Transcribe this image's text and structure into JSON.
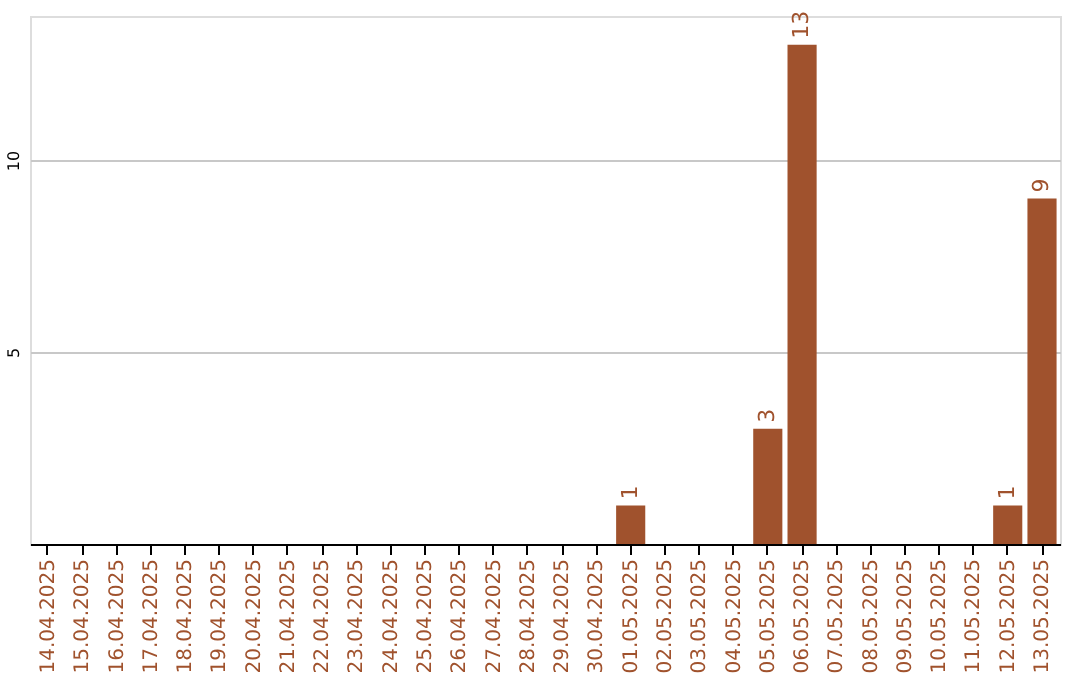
{
  "chart_data": {
    "type": "bar",
    "categories": [
      "14.04.2025",
      "15.04.2025",
      "16.04.2025",
      "17.04.2025",
      "18.04.2025",
      "19.04.2025",
      "20.04.2025",
      "21.04.2025",
      "22.04.2025",
      "23.04.2025",
      "24.04.2025",
      "25.04.2025",
      "26.04.2025",
      "27.04.2025",
      "28.04.2025",
      "29.04.2025",
      "30.04.2025",
      "01.05.2025",
      "02.05.2025",
      "03.05.2025",
      "04.05.2025",
      "05.05.2025",
      "06.05.2025",
      "07.05.2025",
      "08.05.2025",
      "09.05.2025",
      "10.05.2025",
      "11.05.2025",
      "12.05.2025",
      "13.05.2025"
    ],
    "values": [
      0,
      0,
      0,
      0,
      0,
      0,
      0,
      0,
      0,
      0,
      0,
      0,
      0,
      0,
      0,
      0,
      0,
      1,
      0,
      0,
      0,
      3,
      13,
      0,
      0,
      0,
      0,
      0,
      1,
      9
    ],
    "value_labels": [
      null,
      null,
      null,
      null,
      null,
      null,
      null,
      null,
      null,
      null,
      null,
      null,
      null,
      null,
      null,
      null,
      null,
      "1",
      null,
      null,
      null,
      "3",
      "13",
      null,
      null,
      null,
      null,
      null,
      "1",
      "9"
    ],
    "color": "#a0522d",
    "ylim": [
      0,
      13.75
    ],
    "yticks": [
      5,
      10
    ],
    "grid": "y"
  }
}
